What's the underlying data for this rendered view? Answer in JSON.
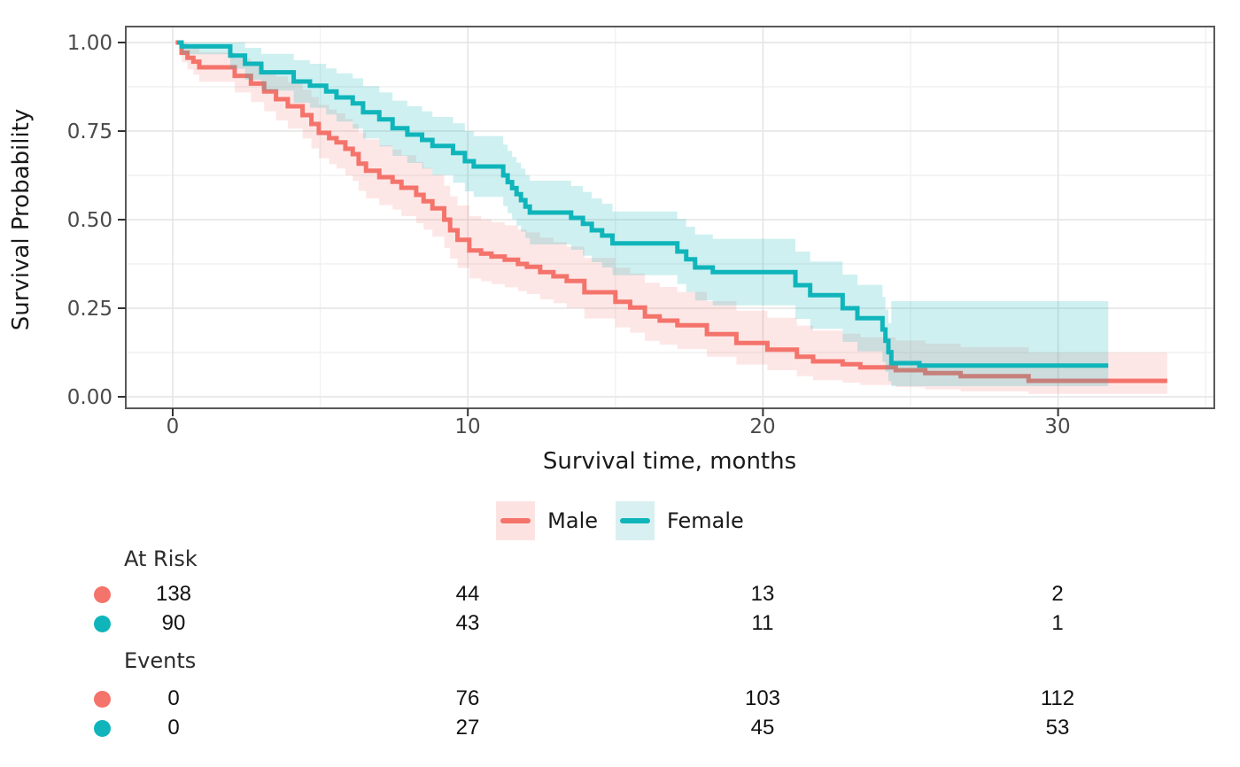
{
  "axis": {
    "y_title": "Survival Probability",
    "x_title": "Survival time, months",
    "y_tick_labels": [
      "1.00",
      "0.75",
      "0.50",
      "0.25",
      "0.00"
    ],
    "x_tick_labels": [
      "0",
      "10",
      "20",
      "30"
    ]
  },
  "legend": [
    {
      "label": "Male",
      "color": "#F4736B",
      "band": "#FCE3E1"
    },
    {
      "label": "Female",
      "color": "#0FB5BA",
      "band": "#D8F0F1"
    }
  ],
  "risk_table": {
    "times": [
      0,
      10,
      20,
      30
    ],
    "sections": [
      {
        "title": "At Risk",
        "rows": [
          {
            "group": "Male",
            "color": "#F4736B",
            "values": [
              "138",
              "44",
              "13",
              "2"
            ]
          },
          {
            "group": "Female",
            "color": "#0FB5BA",
            "values": [
              "90",
              "43",
              "11",
              "1"
            ]
          }
        ]
      },
      {
        "title": "Events",
        "rows": [
          {
            "group": "Male",
            "color": "#F4736B",
            "values": [
              "0",
              "76",
              "103",
              "112"
            ]
          },
          {
            "group": "Female",
            "color": "#0FB5BA",
            "values": [
              "0",
              "27",
              "45",
              "53"
            ]
          }
        ]
      }
    ]
  },
  "chart_data": {
    "type": "line",
    "subtype": "kaplan-meier-step",
    "title": "",
    "xlabel": "Survival time, months",
    "ylabel": "Survival Probability",
    "xlim": [
      -1.6,
      35.3
    ],
    "ylim": [
      -0.03,
      1.045
    ],
    "x_major_ticks": [
      0,
      10,
      20,
      30
    ],
    "x_minor_ticks": [
      5,
      15,
      25,
      35
    ],
    "y_major_ticks": [
      1.0,
      0.75,
      0.5,
      0.25,
      0.0
    ],
    "y_minor_ticks": [
      0.875,
      0.625,
      0.375,
      0.125
    ],
    "grid": true,
    "legend_position": "bottom",
    "series": [
      {
        "name": "Male",
        "color": "#F4736B",
        "band_rgba": "rgba(244,115,107,0.17)",
        "end_t": 33.7,
        "steps": [
          [
            0.1,
            1.0,
            1.0,
            1.0
          ],
          [
            0.3,
            0.971,
            0.944,
            0.999
          ],
          [
            0.5,
            0.957,
            0.924,
            0.991
          ],
          [
            0.7,
            0.946,
            0.909,
            0.984
          ],
          [
            0.9,
            0.93,
            0.889,
            0.972
          ],
          [
            2.1,
            0.906,
            0.859,
            0.955
          ],
          [
            2.65,
            0.884,
            0.832,
            0.939
          ],
          [
            3.1,
            0.862,
            0.806,
            0.921
          ],
          [
            3.5,
            0.84,
            0.78,
            0.904
          ],
          [
            3.9,
            0.82,
            0.757,
            0.888
          ],
          [
            4.4,
            0.795,
            0.729,
            0.867
          ],
          [
            4.7,
            0.77,
            0.701,
            0.846
          ],
          [
            4.95,
            0.745,
            0.673,
            0.824
          ],
          [
            5.3,
            0.73,
            0.657,
            0.811
          ],
          [
            5.55,
            0.718,
            0.644,
            0.8
          ],
          [
            5.85,
            0.7,
            0.625,
            0.784
          ],
          [
            6.1,
            0.685,
            0.609,
            0.77
          ],
          [
            6.3,
            0.658,
            0.581,
            0.746
          ],
          [
            6.55,
            0.638,
            0.56,
            0.727
          ],
          [
            7.0,
            0.62,
            0.541,
            0.71
          ],
          [
            7.45,
            0.607,
            0.528,
            0.698
          ],
          [
            7.75,
            0.59,
            0.51,
            0.682
          ],
          [
            8.25,
            0.57,
            0.49,
            0.663
          ],
          [
            8.5,
            0.552,
            0.472,
            0.646
          ],
          [
            8.8,
            0.532,
            0.452,
            0.627
          ],
          [
            9.2,
            0.5,
            0.42,
            0.596
          ],
          [
            9.4,
            0.47,
            0.39,
            0.566
          ],
          [
            9.65,
            0.443,
            0.364,
            0.54
          ],
          [
            10.05,
            0.413,
            0.334,
            0.51
          ],
          [
            10.45,
            0.404,
            0.326,
            0.501
          ],
          [
            10.8,
            0.396,
            0.318,
            0.493
          ],
          [
            11.25,
            0.387,
            0.309,
            0.484
          ],
          [
            11.7,
            0.375,
            0.298,
            0.472
          ],
          [
            12.0,
            0.367,
            0.29,
            0.464
          ],
          [
            12.45,
            0.352,
            0.275,
            0.449
          ],
          [
            12.9,
            0.34,
            0.264,
            0.437
          ],
          [
            13.35,
            0.327,
            0.251,
            0.424
          ],
          [
            13.95,
            0.295,
            0.221,
            0.392
          ],
          [
            15.0,
            0.268,
            0.196,
            0.364
          ],
          [
            15.5,
            0.252,
            0.181,
            0.348
          ],
          [
            16.0,
            0.227,
            0.158,
            0.322
          ],
          [
            16.5,
            0.215,
            0.147,
            0.31
          ],
          [
            17.1,
            0.202,
            0.135,
            0.296
          ],
          [
            18.1,
            0.177,
            0.113,
            0.27
          ],
          [
            19.1,
            0.152,
            0.091,
            0.243
          ],
          [
            20.15,
            0.133,
            0.075,
            0.223
          ],
          [
            21.15,
            0.113,
            0.058,
            0.201
          ],
          [
            21.7,
            0.1,
            0.047,
            0.187
          ],
          [
            22.7,
            0.092,
            0.04,
            0.178
          ],
          [
            23.3,
            0.083,
            0.033,
            0.168
          ],
          [
            24.5,
            0.075,
            0.027,
            0.159
          ],
          [
            25.5,
            0.067,
            0.021,
            0.15
          ],
          [
            26.7,
            0.058,
            0.015,
            0.14
          ],
          [
            29.0,
            0.045,
            0.008,
            0.125
          ]
        ]
      },
      {
        "name": "Female",
        "color": "#0FB5BA",
        "band_rgba": "rgba(15,181,186,0.20)",
        "end_t": 31.7,
        "steps": [
          [
            0.15,
            1.0,
            1.0,
            1.0
          ],
          [
            0.3,
            0.989,
            0.967,
            1.0
          ],
          [
            1.95,
            0.963,
            0.926,
            1.0
          ],
          [
            2.45,
            0.94,
            0.895,
            0.985
          ],
          [
            3.0,
            0.916,
            0.864,
            0.968
          ],
          [
            4.1,
            0.89,
            0.83,
            0.95
          ],
          [
            4.65,
            0.878,
            0.816,
            0.94
          ],
          [
            5.2,
            0.862,
            0.797,
            0.927
          ],
          [
            5.55,
            0.845,
            0.777,
            0.913
          ],
          [
            6.1,
            0.828,
            0.757,
            0.899
          ],
          [
            6.45,
            0.803,
            0.729,
            0.877
          ],
          [
            7.0,
            0.783,
            0.707,
            0.859
          ],
          [
            7.45,
            0.758,
            0.68,
            0.836
          ],
          [
            7.95,
            0.74,
            0.66,
            0.82
          ],
          [
            8.45,
            0.725,
            0.644,
            0.806
          ],
          [
            8.8,
            0.708,
            0.626,
            0.79
          ],
          [
            9.5,
            0.688,
            0.604,
            0.772
          ],
          [
            9.9,
            0.665,
            0.58,
            0.75
          ],
          [
            10.2,
            0.65,
            0.564,
            0.736
          ],
          [
            11.2,
            0.625,
            0.538,
            0.712
          ],
          [
            11.35,
            0.606,
            0.518,
            0.694
          ],
          [
            11.5,
            0.589,
            0.501,
            0.677
          ],
          [
            11.65,
            0.572,
            0.483,
            0.661
          ],
          [
            11.8,
            0.555,
            0.466,
            0.644
          ],
          [
            11.95,
            0.537,
            0.448,
            0.626
          ],
          [
            12.1,
            0.52,
            0.43,
            0.61
          ],
          [
            13.5,
            0.505,
            0.415,
            0.595
          ],
          [
            13.9,
            0.488,
            0.398,
            0.578
          ],
          [
            14.2,
            0.47,
            0.38,
            0.56
          ],
          [
            14.55,
            0.455,
            0.365,
            0.545
          ],
          [
            14.9,
            0.433,
            0.343,
            0.523
          ],
          [
            17.1,
            0.41,
            0.318,
            0.502
          ],
          [
            17.4,
            0.388,
            0.296,
            0.48
          ],
          [
            17.7,
            0.365,
            0.272,
            0.458
          ],
          [
            18.3,
            0.352,
            0.258,
            0.446
          ],
          [
            21.1,
            0.315,
            0.22,
            0.41
          ],
          [
            21.6,
            0.287,
            0.192,
            0.382
          ],
          [
            22.7,
            0.25,
            0.155,
            0.345
          ],
          [
            23.2,
            0.222,
            0.128,
            0.316
          ],
          [
            24.05,
            0.19,
            0.098,
            0.282
          ],
          [
            24.15,
            0.158,
            0.07,
            0.246
          ],
          [
            24.25,
            0.126,
            0.044,
            0.208
          ],
          [
            24.35,
            0.095,
            0.03,
            0.27
          ],
          [
            25.3,
            0.088,
            0.03,
            0.27
          ]
        ]
      }
    ]
  }
}
